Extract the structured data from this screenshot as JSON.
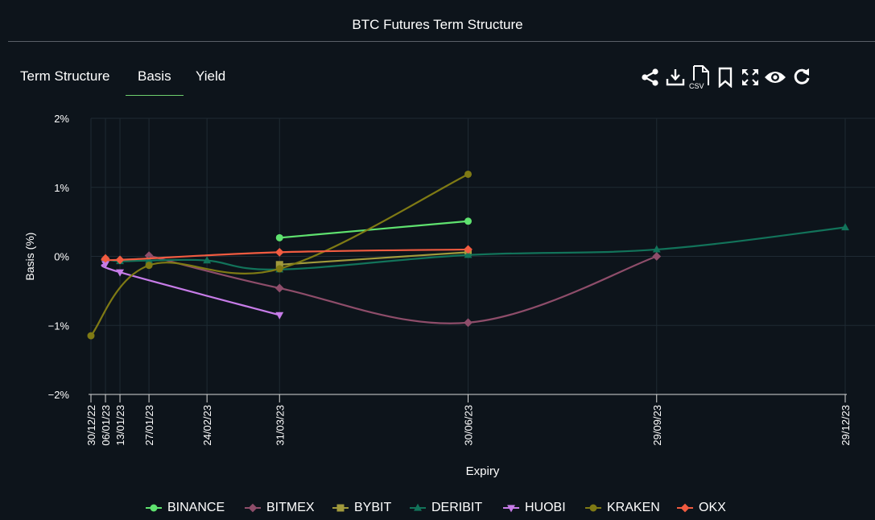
{
  "header": {
    "title": "BTC Futures Term Structure"
  },
  "tabs": [
    {
      "label": "Term Structure",
      "active": false
    },
    {
      "label": "Basis",
      "active": true
    },
    {
      "label": "Yield",
      "active": false
    }
  ],
  "toolbar": {
    "icons": [
      "share-icon",
      "download-icon",
      "csv-icon",
      "bookmark-icon",
      "fullscreen-icon",
      "eye-icon",
      "refresh-icon"
    ],
    "csv_label": "CSV"
  },
  "colors": {
    "background": "#0d141b",
    "BINANCE": "#5fe26f",
    "BITMEX": "#8e4d6a",
    "BYBIT": "#a19a3c",
    "DERIBIT": "#12735a",
    "HUOBI": "#c77ce8",
    "KRAKEN": "#7f7a14",
    "OKX": "#f15b40"
  },
  "chart_data": {
    "type": "line",
    "xlabel": "Expiry",
    "ylabel": "Basis (%)",
    "ylim": [
      -2,
      2
    ],
    "yticks": [
      2,
      1,
      0,
      -1,
      -2
    ],
    "ytick_labels": [
      "2%",
      "1%",
      "0%",
      "−1%",
      "−2%"
    ],
    "x_expiries": [
      "30/12/22",
      "06/01/23",
      "13/01/23",
      "27/01/23",
      "24/02/23",
      "31/03/23",
      "30/06/23",
      "29/09/23",
      "29/12/23"
    ],
    "grid": true,
    "legend": "bottom",
    "series": [
      {
        "name": "BINANCE",
        "marker": "circle",
        "x": [
          "31/03/23",
          "30/06/23"
        ],
        "y": [
          0.27,
          0.51
        ]
      },
      {
        "name": "BITMEX",
        "marker": "diamond",
        "x": [
          "27/01/23",
          "31/03/23",
          "30/06/23",
          "29/09/23"
        ],
        "y": [
          0.01,
          -0.46,
          -0.96,
          0.0
        ]
      },
      {
        "name": "BYBIT",
        "marker": "square",
        "x": [
          "31/03/23",
          "30/06/23"
        ],
        "y": [
          -0.12,
          0.06
        ]
      },
      {
        "name": "DERIBIT",
        "marker": "triangle-up",
        "x": [
          "06/01/23",
          "13/01/23",
          "27/01/23",
          "24/02/23",
          "31/03/23",
          "30/06/23",
          "29/09/23",
          "29/12/23"
        ],
        "y": [
          -0.04,
          -0.07,
          -0.06,
          -0.06,
          -0.19,
          0.02,
          0.1,
          0.42
        ]
      },
      {
        "name": "HUOBI",
        "marker": "triangle-down",
        "x": [
          "06/01/23",
          "13/01/23",
          "31/03/23"
        ],
        "y": [
          -0.11,
          -0.23,
          -0.85
        ]
      },
      {
        "name": "KRAKEN",
        "marker": "circle",
        "x": [
          "30/12/22",
          "27/01/23",
          "31/03/23",
          "30/06/23"
        ],
        "y": [
          -1.15,
          -0.13,
          -0.18,
          1.19
        ]
      },
      {
        "name": "OKX",
        "marker": "diamond",
        "x": [
          "06/01/23",
          "13/01/23",
          "31/03/23",
          "30/06/23"
        ],
        "y": [
          -0.03,
          -0.05,
          0.06,
          0.1
        ]
      }
    ]
  }
}
